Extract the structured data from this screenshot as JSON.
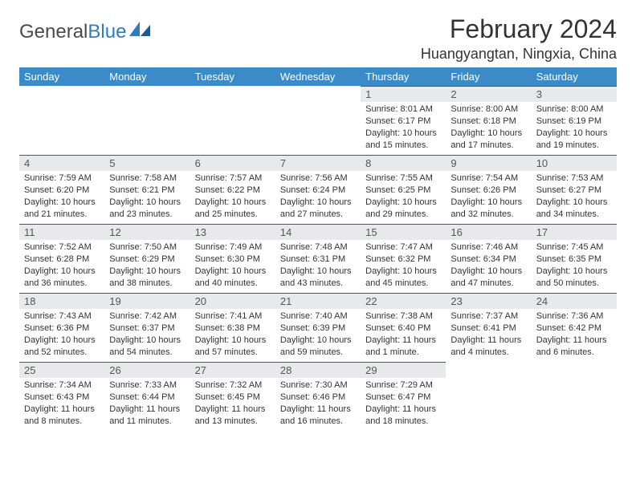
{
  "logo": {
    "text1": "General",
    "text2": "Blue"
  },
  "title": "February 2024",
  "location": "Huangyangtan, Ningxia, China",
  "colors": {
    "header_bg": "#3b8bc9",
    "header_text": "#ffffff",
    "daynum_bg": "#e8e9ea",
    "daynum_border": "#3b5a7a",
    "body_text": "#333333",
    "logo_gray": "#4a4a4a",
    "logo_blue": "#2f7bbf",
    "page_bg": "#ffffff"
  },
  "typography": {
    "title_fontsize": 32,
    "location_fontsize": 18,
    "header_fontsize": 13,
    "daynum_fontsize": 13,
    "body_fontsize": 11
  },
  "weekdays": [
    "Sunday",
    "Monday",
    "Tuesday",
    "Wednesday",
    "Thursday",
    "Friday",
    "Saturday"
  ],
  "weeks": [
    [
      null,
      null,
      null,
      null,
      {
        "n": "1",
        "sunrise": "8:01 AM",
        "sunset": "6:17 PM",
        "daylight": "10 hours and 15 minutes."
      },
      {
        "n": "2",
        "sunrise": "8:00 AM",
        "sunset": "6:18 PM",
        "daylight": "10 hours and 17 minutes."
      },
      {
        "n": "3",
        "sunrise": "8:00 AM",
        "sunset": "6:19 PM",
        "daylight": "10 hours and 19 minutes."
      }
    ],
    [
      {
        "n": "4",
        "sunrise": "7:59 AM",
        "sunset": "6:20 PM",
        "daylight": "10 hours and 21 minutes."
      },
      {
        "n": "5",
        "sunrise": "7:58 AM",
        "sunset": "6:21 PM",
        "daylight": "10 hours and 23 minutes."
      },
      {
        "n": "6",
        "sunrise": "7:57 AM",
        "sunset": "6:22 PM",
        "daylight": "10 hours and 25 minutes."
      },
      {
        "n": "7",
        "sunrise": "7:56 AM",
        "sunset": "6:24 PM",
        "daylight": "10 hours and 27 minutes."
      },
      {
        "n": "8",
        "sunrise": "7:55 AM",
        "sunset": "6:25 PM",
        "daylight": "10 hours and 29 minutes."
      },
      {
        "n": "9",
        "sunrise": "7:54 AM",
        "sunset": "6:26 PM",
        "daylight": "10 hours and 32 minutes."
      },
      {
        "n": "10",
        "sunrise": "7:53 AM",
        "sunset": "6:27 PM",
        "daylight": "10 hours and 34 minutes."
      }
    ],
    [
      {
        "n": "11",
        "sunrise": "7:52 AM",
        "sunset": "6:28 PM",
        "daylight": "10 hours and 36 minutes."
      },
      {
        "n": "12",
        "sunrise": "7:50 AM",
        "sunset": "6:29 PM",
        "daylight": "10 hours and 38 minutes."
      },
      {
        "n": "13",
        "sunrise": "7:49 AM",
        "sunset": "6:30 PM",
        "daylight": "10 hours and 40 minutes."
      },
      {
        "n": "14",
        "sunrise": "7:48 AM",
        "sunset": "6:31 PM",
        "daylight": "10 hours and 43 minutes."
      },
      {
        "n": "15",
        "sunrise": "7:47 AM",
        "sunset": "6:32 PM",
        "daylight": "10 hours and 45 minutes."
      },
      {
        "n": "16",
        "sunrise": "7:46 AM",
        "sunset": "6:34 PM",
        "daylight": "10 hours and 47 minutes."
      },
      {
        "n": "17",
        "sunrise": "7:45 AM",
        "sunset": "6:35 PM",
        "daylight": "10 hours and 50 minutes."
      }
    ],
    [
      {
        "n": "18",
        "sunrise": "7:43 AM",
        "sunset": "6:36 PM",
        "daylight": "10 hours and 52 minutes."
      },
      {
        "n": "19",
        "sunrise": "7:42 AM",
        "sunset": "6:37 PM",
        "daylight": "10 hours and 54 minutes."
      },
      {
        "n": "20",
        "sunrise": "7:41 AM",
        "sunset": "6:38 PM",
        "daylight": "10 hours and 57 minutes."
      },
      {
        "n": "21",
        "sunrise": "7:40 AM",
        "sunset": "6:39 PM",
        "daylight": "10 hours and 59 minutes."
      },
      {
        "n": "22",
        "sunrise": "7:38 AM",
        "sunset": "6:40 PM",
        "daylight": "11 hours and 1 minute."
      },
      {
        "n": "23",
        "sunrise": "7:37 AM",
        "sunset": "6:41 PM",
        "daylight": "11 hours and 4 minutes."
      },
      {
        "n": "24",
        "sunrise": "7:36 AM",
        "sunset": "6:42 PM",
        "daylight": "11 hours and 6 minutes."
      }
    ],
    [
      {
        "n": "25",
        "sunrise": "7:34 AM",
        "sunset": "6:43 PM",
        "daylight": "11 hours and 8 minutes."
      },
      {
        "n": "26",
        "sunrise": "7:33 AM",
        "sunset": "6:44 PM",
        "daylight": "11 hours and 11 minutes."
      },
      {
        "n": "27",
        "sunrise": "7:32 AM",
        "sunset": "6:45 PM",
        "daylight": "11 hours and 13 minutes."
      },
      {
        "n": "28",
        "sunrise": "7:30 AM",
        "sunset": "6:46 PM",
        "daylight": "11 hours and 16 minutes."
      },
      {
        "n": "29",
        "sunrise": "7:29 AM",
        "sunset": "6:47 PM",
        "daylight": "11 hours and 18 minutes."
      },
      null,
      null
    ]
  ],
  "labels": {
    "sunrise": "Sunrise: ",
    "sunset": "Sunset: ",
    "daylight": "Daylight: "
  }
}
